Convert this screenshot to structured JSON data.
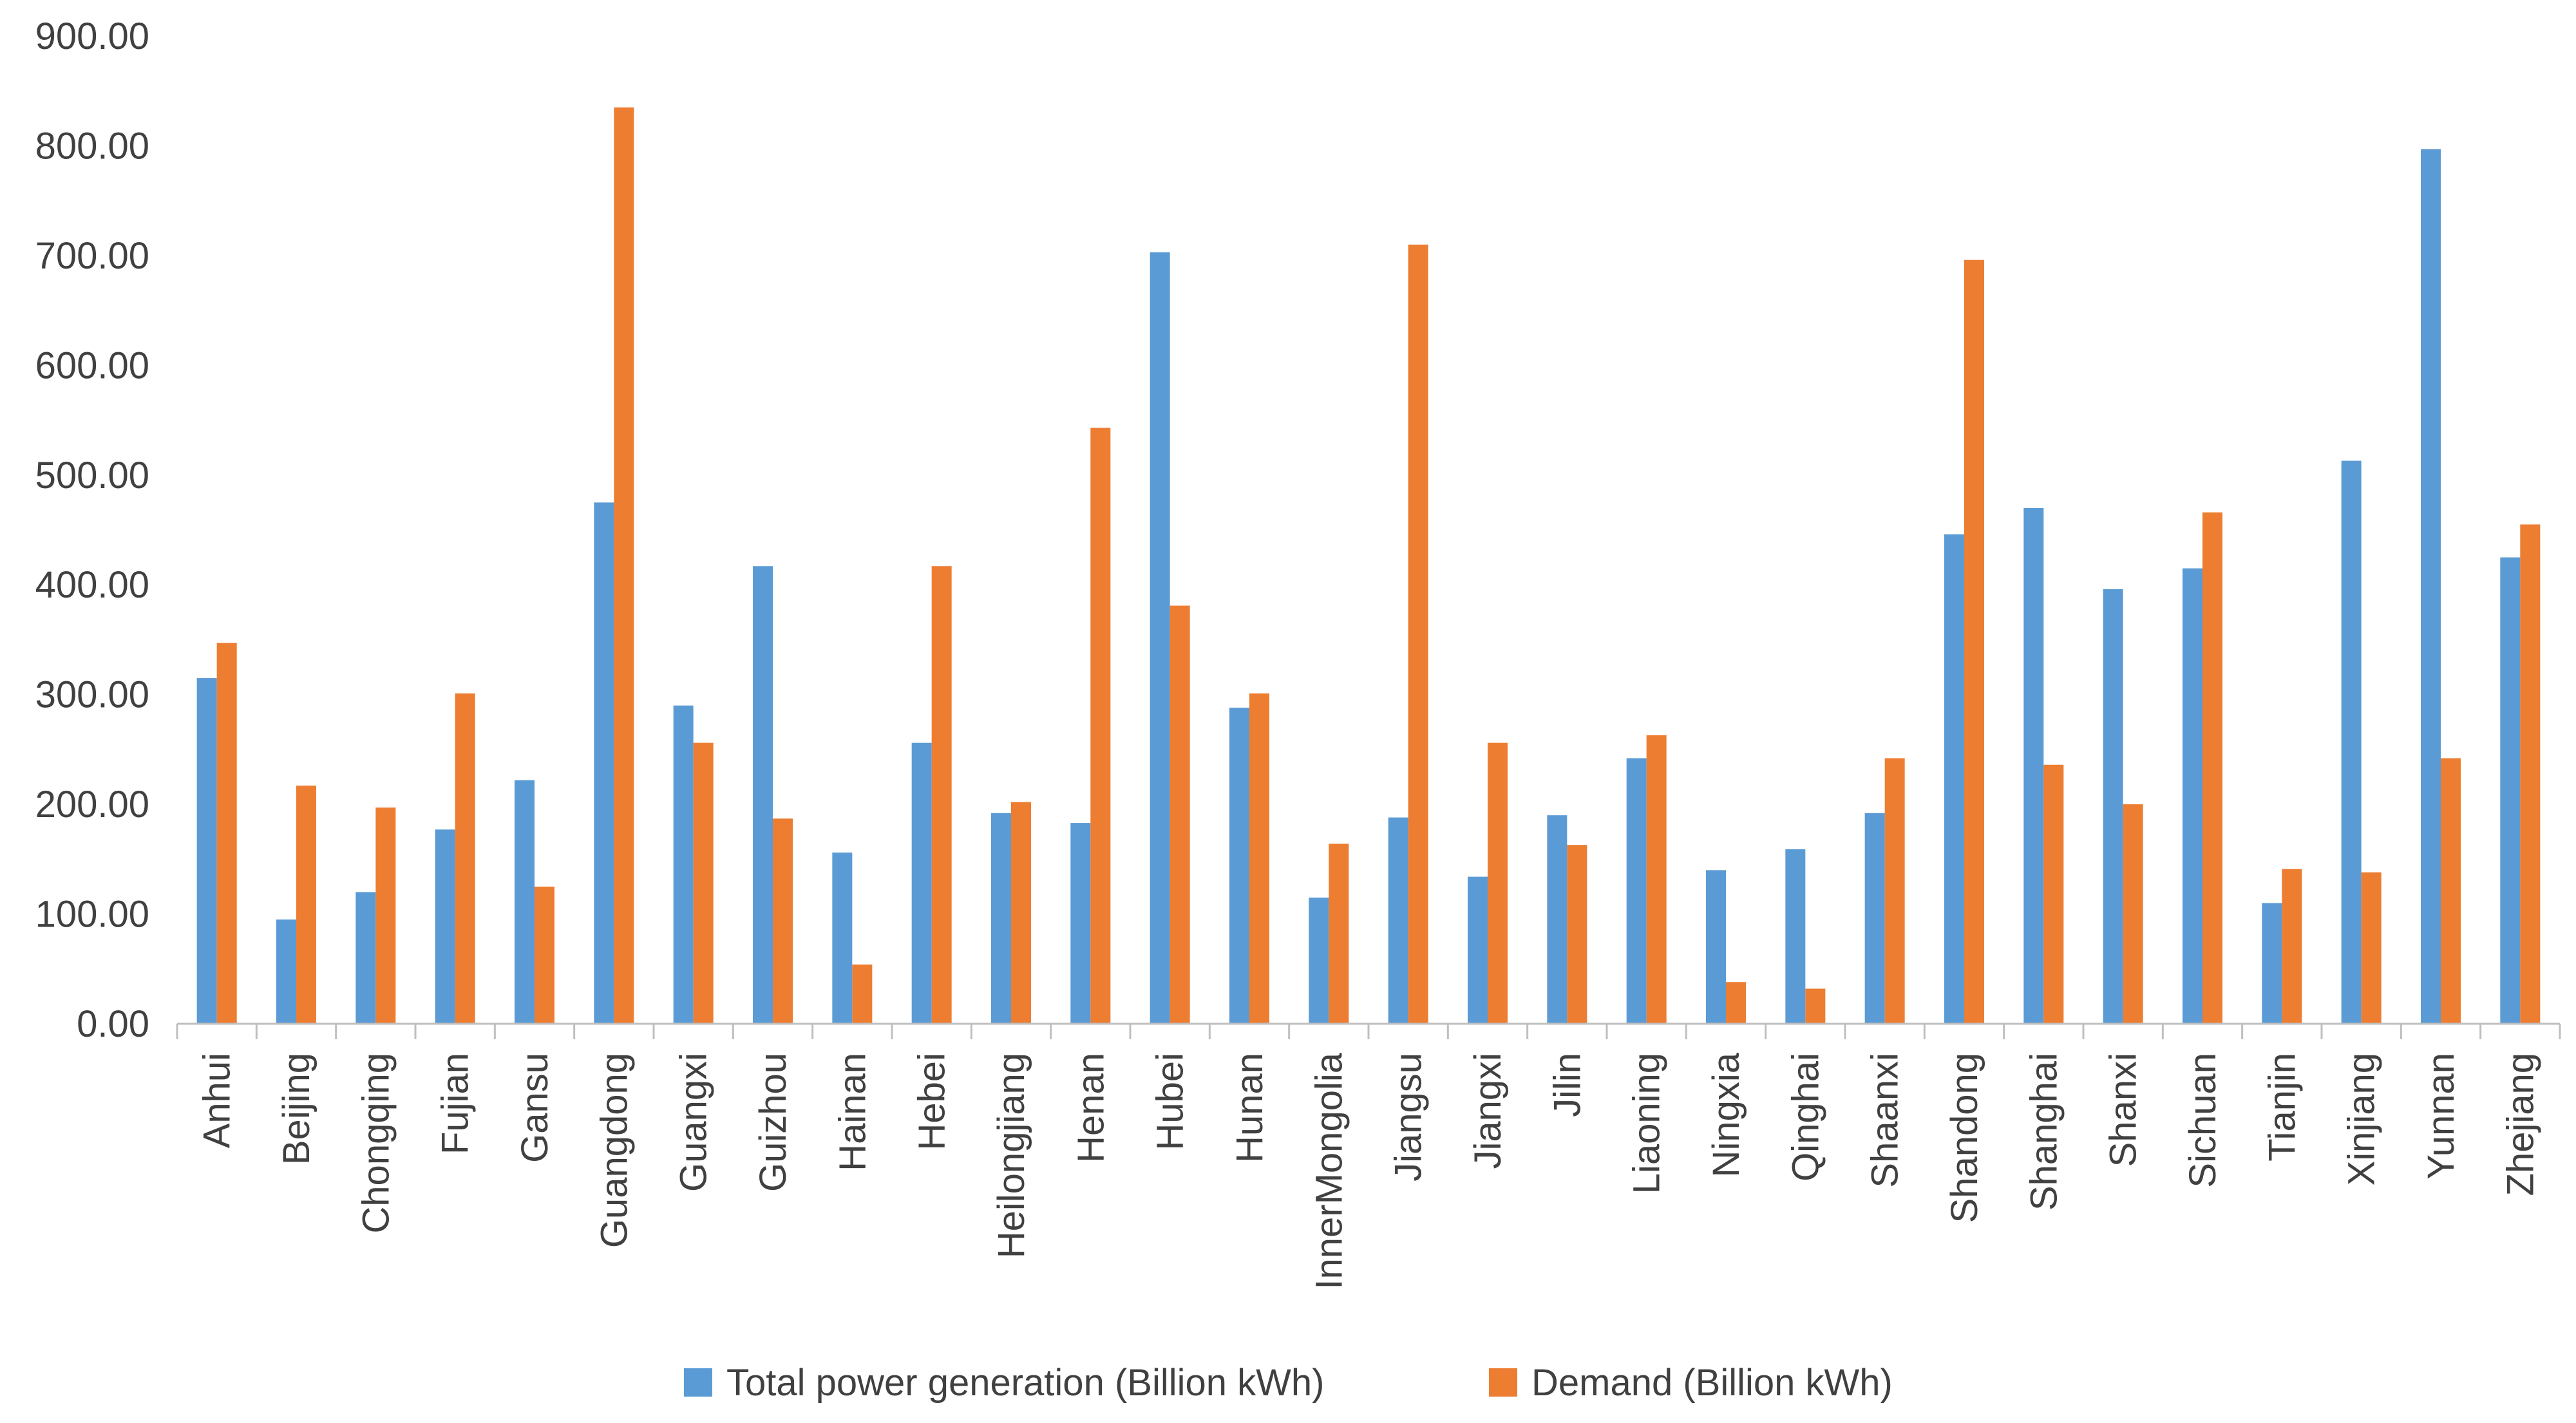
{
  "chart_data": {
    "type": "bar",
    "title": "",
    "xlabel": "",
    "ylabel": "",
    "ylim": [
      0,
      900
    ],
    "yticks": [
      "0.00",
      "100.00",
      "200.00",
      "300.00",
      "400.00",
      "500.00",
      "600.00",
      "700.00",
      "800.00",
      "900.00"
    ],
    "grid": false,
    "legend_position": "bottom",
    "categories": [
      "Anhui",
      "Beijing",
      "Chongqing",
      "Fujian",
      "Gansu",
      "Guangdong",
      "Guangxi",
      "Guizhou",
      "Hainan",
      "Hebei",
      "Heilongjiang",
      "Henan",
      "Hubei",
      "Hunan",
      "InnerMongolia",
      "Jiangsu",
      "Jiangxi",
      "Jilin",
      "Liaoning",
      "Ningxia",
      "Qinghai",
      "Shaanxi",
      "Shandong",
      "Shanghai",
      "Shanxi",
      "Sichuan",
      "Tianjin",
      "Xinjiang",
      "Yunnan",
      "Zhejiang"
    ],
    "series": [
      {
        "name": "Total power generation (Billion kWh)",
        "color": "#5B9BD5",
        "values": [
          315,
          95,
          120,
          177,
          222,
          475,
          290,
          417,
          156,
          256,
          192,
          183,
          703,
          288,
          115,
          188,
          134,
          190,
          242,
          140,
          159,
          192,
          446,
          470,
          396,
          415,
          110,
          513,
          797,
          425
        ]
      },
      {
        "name": "Demand (Billion kWh)",
        "color": "#ED7D31",
        "values": [
          347,
          217,
          197,
          301,
          125,
          835,
          256,
          187,
          54,
          417,
          202,
          543,
          381,
          301,
          164,
          710,
          256,
          163,
          263,
          38,
          32,
          242,
          696,
          236,
          200,
          466,
          141,
          138,
          242,
          455
        ]
      }
    ]
  }
}
